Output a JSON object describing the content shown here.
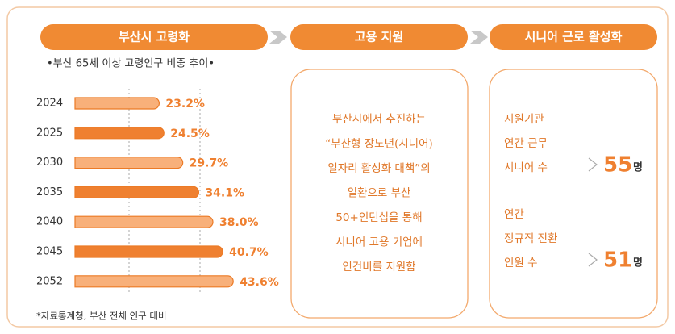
{
  "flow": [
    "부산시 고령화",
    "고용 지원",
    "시니어 근로 활성화"
  ],
  "chart_data": {
    "type": "bar",
    "orientation": "horizontal",
    "title": "•부산 65세 이상 고령인구 비중 추이•",
    "categories": [
      "2024",
      "2025",
      "2030",
      "2035",
      "2040",
      "2045",
      "2052"
    ],
    "values": [
      23.2,
      24.5,
      29.7,
      34.1,
      38.0,
      40.7,
      43.6
    ],
    "value_labels": [
      "23.2%",
      "24.5%",
      "29.7%",
      "34.1%",
      "38.0%",
      "40.7%",
      "43.6%"
    ],
    "bar_colors": [
      "#f8b07a",
      "#ef8030",
      "#f8b07a",
      "#ef8030",
      "#f8b07a",
      "#ef8030",
      "#f8b07a"
    ],
    "note": "*자료통계청, 부산 전체 인구 대비"
  },
  "support": {
    "lines": [
      "부산시에서 추진하는",
      "“부산형 장노년(시니어)",
      "일자리 활성화 대책”의",
      "일환으로 부산",
      "50+인턴십을 통해",
      "시니어 고용 기업에",
      "인건비를 지원함"
    ]
  },
  "results": [
    {
      "label_lines": [
        "지원기관",
        "연간 근무",
        "시니어 수"
      ],
      "value": 55,
      "unit": "명"
    },
    {
      "label_lines": [
        "연간",
        "정규직 전환",
        "인원 수"
      ],
      "value": 51,
      "unit": "명"
    }
  ]
}
